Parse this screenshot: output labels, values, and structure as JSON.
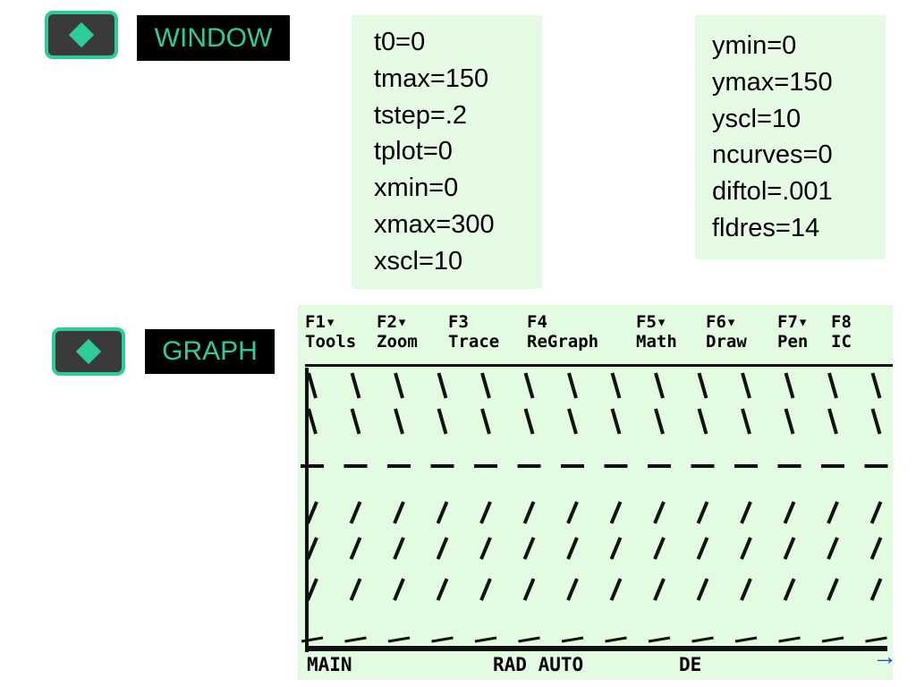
{
  "window_key": {
    "label": "WINDOW"
  },
  "graph_key": {
    "label": "GRAPH"
  },
  "window_settings_left": [
    "t0=0",
    "tmax=150",
    "tstep=.2",
    "tplot=0",
    "xmin=0",
    "xmax=300",
    "xscl=10"
  ],
  "window_settings_right": [
    "ymin=0",
    "ymax=150",
    "yscl=10",
    "ncurves=0",
    "diftol=.001",
    "fldres=14"
  ],
  "toolbar": [
    {
      "key": "F1▾",
      "name": "Tools"
    },
    {
      "key": "F2▾",
      "name": "Zoom"
    },
    {
      "key": "F3",
      "name": "Trace"
    },
    {
      "key": "F4",
      "name": "ReGraph"
    },
    {
      "key": "F5▾",
      "name": "Math"
    },
    {
      "key": "F6▾",
      "name": "Draw"
    },
    {
      "key": "F7▾",
      "name": "Pen"
    },
    {
      "key": "F8",
      "name": "IC"
    }
  ],
  "status_bar": {
    "folder": "MAIN",
    "mode": "RAD AUTO",
    "graph_mode": "DE"
  },
  "next_arrow": "→"
}
